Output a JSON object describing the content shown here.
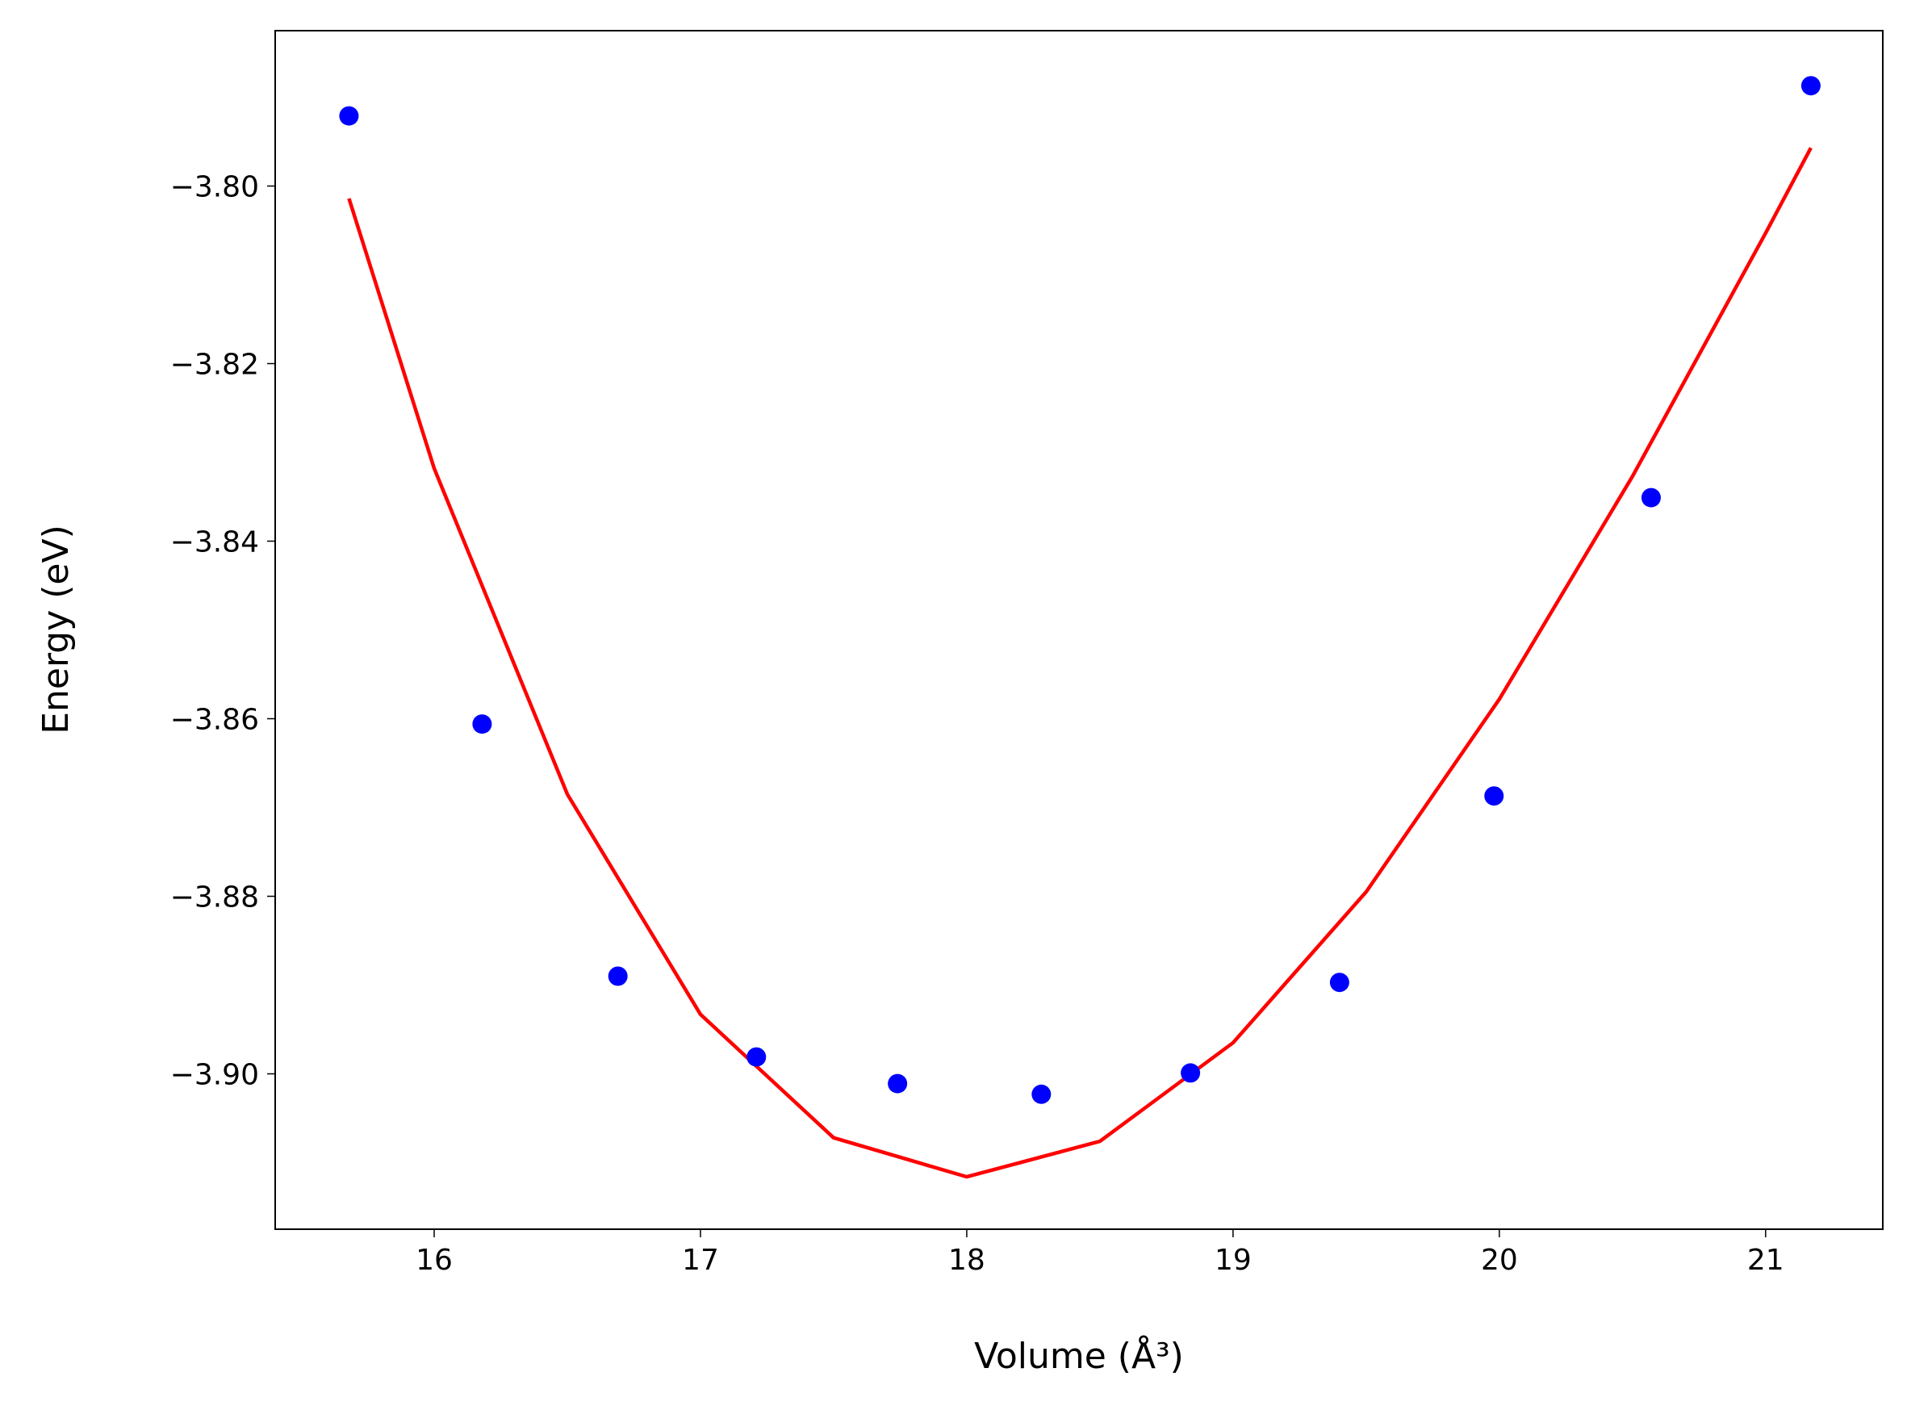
{
  "chart_data": {
    "type": "scatter",
    "xlabel": "Volume (Å³)",
    "ylabel": "Energy (eV)",
    "xlim": [
      15.403,
      21.44
    ],
    "ylim": [
      -3.9175,
      -3.7825
    ],
    "xticks": [
      16,
      17,
      18,
      19,
      20,
      21
    ],
    "yticks": [
      {
        "value": -3.8,
        "label": "−3.80"
      },
      {
        "value": -3.82,
        "label": "−3.82"
      },
      {
        "value": -3.84,
        "label": "−3.84"
      },
      {
        "value": -3.86,
        "label": "−3.86"
      },
      {
        "value": -3.88,
        "label": "−3.88"
      },
      {
        "value": -3.9,
        "label": "−3.90"
      }
    ],
    "series": [
      {
        "type": "scatter",
        "color": "#0000ff",
        "x": [
          15.68,
          16.18,
          16.69,
          17.21,
          17.74,
          18.28,
          18.84,
          19.4,
          19.98,
          20.57,
          21.17
        ],
        "values": [
          -3.7921,
          -3.8606,
          -3.889,
          -3.8981,
          -3.9011,
          -3.9023,
          -3.8999,
          -3.8897,
          -3.8687,
          -3.8351,
          -3.7887
        ]
      },
      {
        "type": "line",
        "color": "#ff0000",
        "x": [
          15.68,
          16.0,
          16.5,
          17.0,
          17.5,
          18.0,
          18.5,
          19.0,
          19.5,
          20.0,
          20.5,
          21.0,
          21.17
        ],
        "values": [
          -3.8014,
          -3.8318,
          -3.8685,
          -3.8933,
          -3.9072,
          -3.9116,
          -3.9076,
          -3.8965,
          -3.8795,
          -3.8578,
          -3.8327,
          -3.8053,
          -3.7957
        ]
      }
    ]
  }
}
